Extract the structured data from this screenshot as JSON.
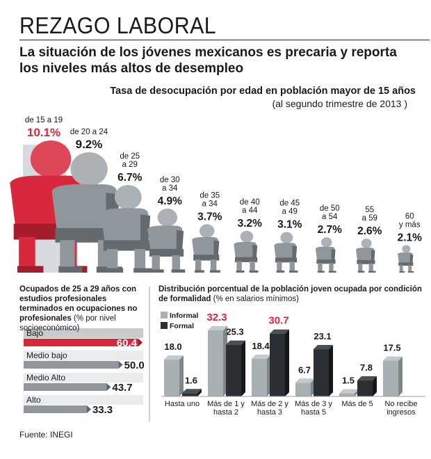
{
  "title": "REZAGO LABORAL",
  "subtitle": "La situación de los jóvenes mexicanos es precaria y reporta los niveles más altos de desempleo",
  "source": "Fuente: INEGI",
  "colors": {
    "highlight": "#d9273b",
    "gray": "#8f979c",
    "dark": "#2a2f33",
    "light_gray": "#a9b0b4",
    "band": "#c9cdd0"
  },
  "chart_data": [
    {
      "type": "bar",
      "title": "Tasa de desocupación por edad en población mayor de 15 años",
      "subtitle": "(al segundo trimestre de 2013 )",
      "categories": [
        "de 15 a 19",
        "de 20 a 24",
        "de 25 a 29",
        "de 30 a 34",
        "de 35 a 34",
        "de 40 a 44",
        "de 45 a 49",
        "de 50 a 54",
        "55 a 59",
        "60 y más"
      ],
      "labels": [
        "de 15 a 19",
        "de 20 a 24",
        "de 25\na 29",
        "de 30\na 34",
        "de 35\na 34",
        "de 40\na 44",
        "de 45\na 49",
        "de 50\na 54",
        "55\na 59",
        "60\ny más"
      ],
      "values": [
        10.1,
        9.2,
        6.7,
        4.9,
        3.7,
        3.2,
        3.1,
        2.7,
        2.6,
        2.1
      ],
      "value_labels": [
        "10.1%",
        "9.2%",
        "6.7%",
        "4.9%",
        "3.7%",
        "3.2%",
        "3.1%",
        "2.7%",
        "2.6%",
        "2.1%"
      ],
      "highlight_index": 0
    },
    {
      "type": "bar",
      "title": "Ocupados de 25 a 29 años con estudios profesionales terminados en ocupaciones no profesionales",
      "subtitle": "(% por nivel socioeconómico)",
      "categories": [
        "Bajo",
        "Medio bajo",
        "Medio Alto",
        "Alto"
      ],
      "values": [
        60.4,
        50.0,
        43.7,
        33.3
      ],
      "value_labels": [
        "60.4",
        "50.0",
        "43.7",
        "33.3"
      ],
      "highlight_index": 0
    },
    {
      "type": "bar",
      "title": "Distribución porcentual de la población joven ocupada por condición de formalidad",
      "subtitle": "(% en salarios mínimos)",
      "categories": [
        "Hasta uno",
        "Más de 1 y hasta 2",
        "Más de 2 y hasta 3",
        "Más de 3 y hasta 5",
        "Más de  5",
        "No recibe ingresos"
      ],
      "category_labels": [
        "Hasta uno",
        "Más de 1 y\nhasta 2",
        "Más de 2 y\nhasta 3",
        "Más de 3 y\nhasta 5",
        "Más de  5",
        "No recibe\ningresos"
      ],
      "series": [
        {
          "name": "Informal",
          "values": [
            18.0,
            32.3,
            18.4,
            6.7,
            1.5,
            17.5
          ],
          "value_labels": [
            "18.0",
            "32.3",
            "18.4",
            "6.7",
            "1.5",
            "17.5"
          ]
        },
        {
          "name": "Formal",
          "values": [
            1.6,
            25.3,
            30.7,
            23.1,
            7.8,
            null
          ],
          "value_labels": [
            "1.6",
            "25.3",
            "30.7",
            "23.1",
            "7.8",
            ""
          ]
        }
      ],
      "highlight_max": true
    }
  ]
}
